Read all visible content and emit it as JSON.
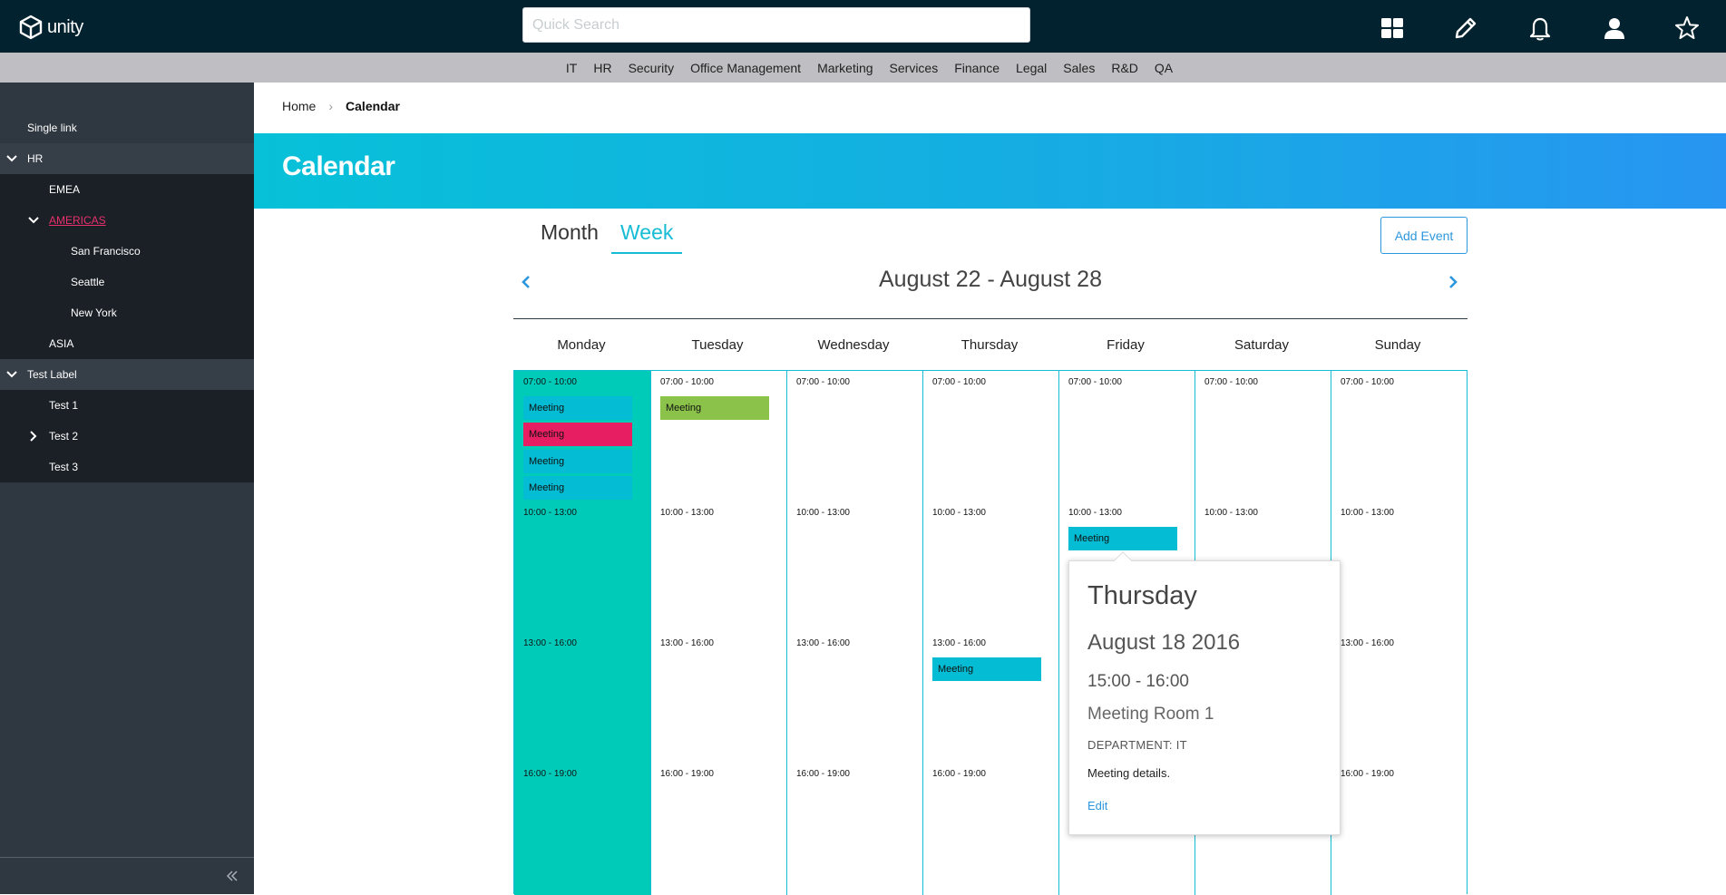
{
  "app": {
    "logo_text": "unity",
    "search_placeholder": "Quick Search"
  },
  "top_icons": [
    "dashboard-icon",
    "pencil-icon",
    "bell-icon",
    "user-icon",
    "star-icon"
  ],
  "nav": {
    "items": [
      "IT",
      "HR",
      "Security",
      "Office Management",
      "Marketing",
      "Services",
      "Finance",
      "Legal",
      "Sales",
      "R&D",
      "QA"
    ]
  },
  "sidebar": {
    "single_link": "Single link",
    "hr": "HR",
    "emea": "EMEA",
    "americas": "AMERICAS",
    "san_francisco": "San Francisco",
    "seattle": "Seattle",
    "new_york": "New York",
    "asia": "ASIA",
    "test_label": "Test Label",
    "test1": "Test 1",
    "test2": "Test 2",
    "test3": "Test 3"
  },
  "breadcrumb": {
    "home": "Home",
    "separator": "›",
    "current": "Calendar"
  },
  "page_title": "Calendar",
  "tabs": {
    "month": "Month",
    "week": "Week"
  },
  "add_event_label": "Add Event",
  "date_range": "August 22 - August 28",
  "days": [
    "Monday",
    "Tuesday",
    "Wednesday",
    "Thursday",
    "Friday",
    "Saturday",
    "Sunday"
  ],
  "slots": [
    "07:00 - 10:00",
    "10:00 - 13:00",
    "13:00 - 16:00",
    "16:00 - 19:00"
  ],
  "event_label": "Meeting",
  "colors": {
    "accent": "#16bcd4",
    "event_cyan": "#04bcd4",
    "event_pink": "#e71e62",
    "event_green": "#8bc34a",
    "today": "#00cbb9"
  },
  "popover": {
    "day": "Thursday",
    "date": "August 18 2016",
    "time": "15:00 - 16:00",
    "room": "Meeting Room 1",
    "department": "DEPARTMENT: IT",
    "details": "Meeting details.",
    "edit_label": "Edit"
  }
}
